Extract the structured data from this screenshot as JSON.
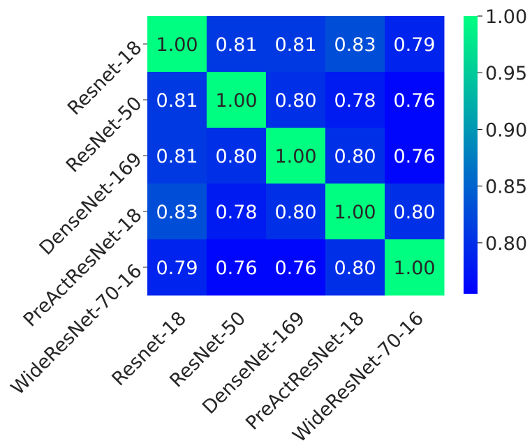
{
  "chart_data": {
    "type": "heatmap",
    "title": "",
    "xlabel": "",
    "ylabel": "",
    "x_categories": [
      "Resnet-18",
      "ResNet-50",
      "DenseNet-169",
      "PreActResNet-18",
      "WideResNet-70-16"
    ],
    "y_categories": [
      "Resnet-18",
      "ResNet-50",
      "DenseNet-169",
      "PreActResNet-18",
      "WideResNet-70-16"
    ],
    "values": [
      [
        1.0,
        0.81,
        0.81,
        0.83,
        0.79
      ],
      [
        0.81,
        1.0,
        0.8,
        0.78,
        0.76
      ],
      [
        0.81,
        0.8,
        1.0,
        0.8,
        0.76
      ],
      [
        0.83,
        0.78,
        0.8,
        1.0,
        0.8
      ],
      [
        0.79,
        0.76,
        0.76,
        0.8,
        1.0
      ]
    ],
    "value_labels": [
      [
        "1.00",
        "0.81",
        "0.81",
        "0.83",
        "0.79"
      ],
      [
        "0.81",
        "1.00",
        "0.80",
        "0.78",
        "0.76"
      ],
      [
        "0.81",
        "0.80",
        "1.00",
        "0.80",
        "0.76"
      ],
      [
        "0.83",
        "0.78",
        "0.80",
        "1.00",
        "0.80"
      ],
      [
        "0.79",
        "0.76",
        "0.76",
        "0.80",
        "1.00"
      ]
    ],
    "colormap": "winter",
    "color_low": "#0000ff",
    "color_high": "#00ff80",
    "annotation_color_dark": "#262626",
    "annotation_color_light": "#ffffff",
    "colorbar": {
      "vmin": 0.755,
      "vmax": 1.0,
      "ticks": [
        0.8,
        0.85,
        0.9,
        0.95,
        1.0
      ],
      "tick_labels": [
        "0.80",
        "0.85",
        "0.90",
        "0.95",
        "1.00"
      ]
    }
  }
}
